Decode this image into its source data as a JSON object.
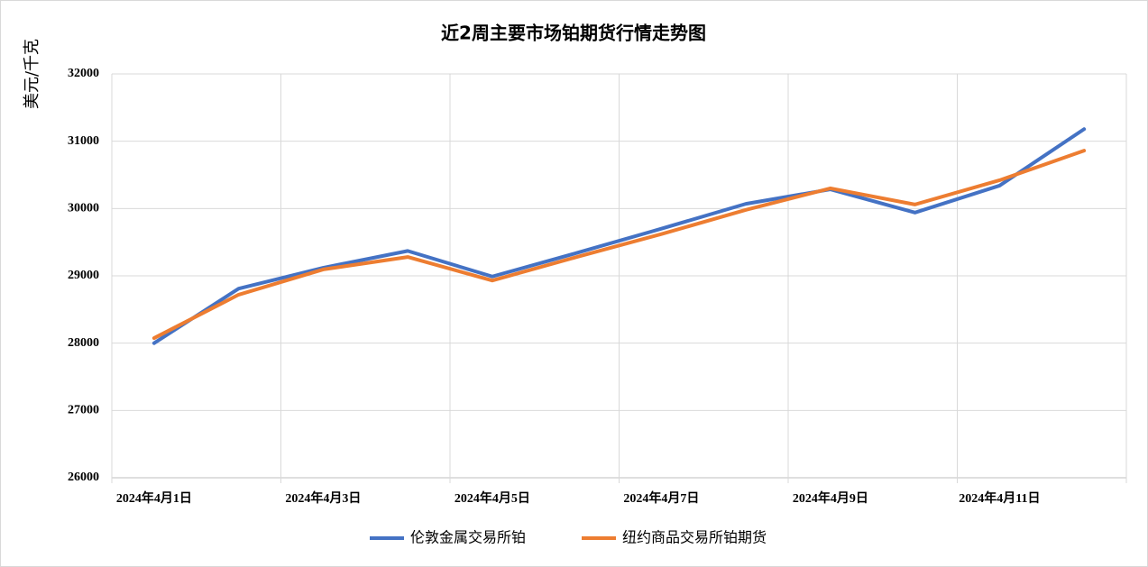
{
  "chart_data": {
    "type": "line",
    "title": "近2周主要市场铂期货行情走势图",
    "y_label": "美元/千克",
    "categories": [
      "2024年4月1日",
      null,
      "2024年4月3日",
      null,
      "2024年4月5日",
      null,
      "2024年4月7日",
      null,
      "2024年4月9日",
      null,
      "2024年4月11日",
      null
    ],
    "series": [
      {
        "name": "伦敦金属交易所铂",
        "color": "#4472c4",
        "values": [
          28000,
          28810,
          29120,
          29370,
          28990,
          29340,
          29700,
          30070,
          30285,
          29940,
          30340,
          31180
        ]
      },
      {
        "name": "纽约商品交易所铂期货",
        "color": "#ed7d31",
        "values": [
          28075,
          28720,
          29095,
          29280,
          28930,
          29280,
          29620,
          29980,
          30300,
          30060,
          30420,
          30860
        ]
      }
    ],
    "ylim": [
      26000,
      32000
    ],
    "yticks": [
      26000,
      27000,
      28000,
      29000,
      30000,
      31000,
      32000
    ],
    "grid": true,
    "legend": "bottom"
  }
}
